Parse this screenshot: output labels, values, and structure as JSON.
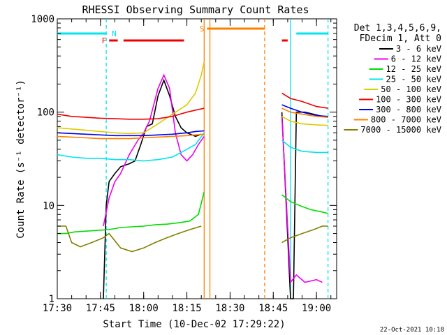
{
  "chart_data": {
    "type": "line",
    "title": "RHESSI Observing Summary Count Rates",
    "xlabel": "Start Time (10-Dec-02 17:29:22)",
    "ylabel": "Count Rate (s⁻¹ detector⁻¹)",
    "y_scale": "log",
    "ylim": [
      1,
      1000
    ],
    "y_ticks": [
      {
        "value": 1,
        "label": "1"
      },
      {
        "value": 10,
        "label": "10"
      },
      {
        "value": 100,
        "label": "100"
      },
      {
        "value": 1000,
        "label": "1000"
      }
    ],
    "xlim": [
      "17:30",
      "19:07"
    ],
    "x_ticks": [
      "17:30",
      "17:45",
      "18:00",
      "18:15",
      "18:30",
      "18:45",
      "19:00"
    ],
    "legend_header": [
      "Det 1,3,4,5,6,9,",
      "FDecim 1, Att 0"
    ],
    "legend_position": "top-right",
    "timestamp": "22-Oct-2021 10:18",
    "flags": [
      {
        "label": "N",
        "color": "#00e5ee",
        "segments": [
          [
            "17:30",
            "17:47"
          ],
          [
            "18:53",
            "19:04"
          ]
        ]
      },
      {
        "label": "F",
        "color": "#ee0000",
        "segments": [
          [
            "17:48",
            "17:51"
          ],
          [
            "17:53",
            "18:14"
          ],
          [
            "18:48",
            "18:50"
          ]
        ]
      },
      {
        "label": "S",
        "color": "#ff8000",
        "segments": [
          [
            "18:22",
            "18:42"
          ]
        ]
      }
    ],
    "time_markers": [
      {
        "time": "17:47",
        "color": "#00e5ee",
        "style": "dashed"
      },
      {
        "time": "18:21",
        "color": "#ff8000",
        "style": "solid"
      },
      {
        "time": "18:23",
        "color": "#ff8000",
        "style": "solid"
      },
      {
        "time": "18:42",
        "color": "#ff8000",
        "style": "dashed"
      },
      {
        "time": "18:51",
        "color": "#00e5ee",
        "style": "solid"
      },
      {
        "time": "19:04",
        "color": "#00e5ee",
        "style": "dashed"
      }
    ],
    "series": [
      {
        "name": "3 - 6 keV",
        "color": "#000000",
        "points": [
          [
            "17:46",
            1
          ],
          [
            "17:47",
            10
          ],
          [
            "17:48",
            18
          ],
          [
            "17:50",
            22
          ],
          [
            "17:52",
            26
          ],
          [
            "17:55",
            28
          ],
          [
            "17:57",
            30
          ],
          [
            "17:59",
            45
          ],
          [
            "18:01",
            70
          ],
          [
            "18:03",
            75
          ],
          [
            "18:05",
            150
          ],
          [
            "18:07",
            220
          ],
          [
            "18:09",
            150
          ],
          [
            "18:11",
            90
          ],
          [
            "18:13",
            68
          ],
          [
            "18:15",
            60
          ],
          [
            "18:18",
            55
          ],
          [
            "18:20",
            58
          ]
        ],
        "points2": [
          [
            "18:48",
            100
          ],
          [
            "18:51",
            1
          ],
          [
            "18:52",
            1
          ],
          [
            "18:53",
            100
          ],
          [
            "18:56",
            100
          ],
          [
            "18:59",
            95
          ],
          [
            "19:02",
            90
          ],
          [
            "19:04",
            88
          ]
        ]
      },
      {
        "name": "6 - 12 keV",
        "color": "#ee00ee",
        "points": [
          [
            "17:46",
            6
          ],
          [
            "17:48",
            12
          ],
          [
            "17:50",
            18
          ],
          [
            "17:52",
            22
          ],
          [
            "17:55",
            35
          ],
          [
            "17:58",
            50
          ],
          [
            "18:00",
            60
          ],
          [
            "18:02",
            80
          ],
          [
            "18:05",
            180
          ],
          [
            "18:07",
            250
          ],
          [
            "18:09",
            180
          ],
          [
            "18:11",
            60
          ],
          [
            "18:13",
            35
          ],
          [
            "18:15",
            30
          ],
          [
            "18:17",
            35
          ],
          [
            "18:19",
            45
          ],
          [
            "18:21",
            55
          ]
        ],
        "points2": [
          [
            "18:48",
            90
          ],
          [
            "18:51",
            1.5
          ],
          [
            "18:53",
            1.8
          ],
          [
            "18:56",
            1.5
          ],
          [
            "19:00",
            1.6
          ],
          [
            "19:02",
            1.5
          ]
        ]
      },
      {
        "name": "12 - 25 keV",
        "color": "#00dd00",
        "points": [
          [
            "17:30",
            5
          ],
          [
            "17:33",
            5
          ],
          [
            "17:36",
            5.2
          ],
          [
            "17:40",
            5.3
          ],
          [
            "17:44",
            5.4
          ],
          [
            "17:48",
            5.5
          ],
          [
            "17:52",
            5.8
          ],
          [
            "17:56",
            5.9
          ],
          [
            "18:00",
            6
          ],
          [
            "18:04",
            6.2
          ],
          [
            "18:08",
            6.3
          ],
          [
            "18:12",
            6.5
          ],
          [
            "18:16",
            6.8
          ],
          [
            "18:19",
            8
          ],
          [
            "18:21",
            14
          ]
        ],
        "points2": [
          [
            "18:48",
            13
          ],
          [
            "18:51",
            11
          ],
          [
            "18:54",
            10
          ],
          [
            "18:58",
            9
          ],
          [
            "19:02",
            8.5
          ],
          [
            "19:04",
            8.2
          ]
        ]
      },
      {
        "name": "25 - 50 keV",
        "color": "#00e5ee",
        "points": [
          [
            "17:30",
            35
          ],
          [
            "17:35",
            33
          ],
          [
            "17:40",
            32
          ],
          [
            "17:45",
            32
          ],
          [
            "17:50",
            31
          ],
          [
            "17:55",
            31
          ],
          [
            "18:00",
            30
          ],
          [
            "18:05",
            31
          ],
          [
            "18:10",
            33
          ],
          [
            "18:15",
            40
          ],
          [
            "18:18",
            45
          ],
          [
            "18:21",
            60
          ]
        ],
        "points2": [
          [
            "18:48",
            50
          ],
          [
            "18:51",
            42
          ],
          [
            "18:55",
            38
          ],
          [
            "19:00",
            37
          ],
          [
            "19:04",
            37
          ]
        ]
      },
      {
        "name": "50 - 100 keV",
        "color": "#ddcc00",
        "points": [
          [
            "17:30",
            68
          ],
          [
            "17:35",
            66
          ],
          [
            "17:40",
            64
          ],
          [
            "17:45",
            62
          ],
          [
            "17:50",
            60
          ],
          [
            "17:55",
            59
          ],
          [
            "18:00",
            60
          ],
          [
            "18:05",
            75
          ],
          [
            "18:10",
            95
          ],
          [
            "18:15",
            120
          ],
          [
            "18:18",
            160
          ],
          [
            "18:20",
            250
          ],
          [
            "18:21",
            350
          ]
        ],
        "points2": [
          [
            "18:48",
            90
          ],
          [
            "18:51",
            80
          ],
          [
            "18:55",
            75
          ],
          [
            "19:00",
            73
          ],
          [
            "19:04",
            72
          ]
        ]
      },
      {
        "name": "100 - 300 keV",
        "color": "#ee0000",
        "points": [
          [
            "17:30",
            95
          ],
          [
            "17:35",
            90
          ],
          [
            "17:40",
            88
          ],
          [
            "17:45",
            86
          ],
          [
            "17:50",
            85
          ],
          [
            "17:55",
            84
          ],
          [
            "18:00",
            84
          ],
          [
            "18:05",
            85
          ],
          [
            "18:10",
            90
          ],
          [
            "18:15",
            100
          ],
          [
            "18:18",
            105
          ],
          [
            "18:21",
            110
          ]
        ],
        "points2": [
          [
            "18:48",
            160
          ],
          [
            "18:51",
            140
          ],
          [
            "18:55",
            130
          ],
          [
            "19:00",
            115
          ],
          [
            "19:04",
            110
          ]
        ]
      },
      {
        "name": "300 - 800 keV",
        "color": "#0000ee",
        "points": [
          [
            "17:30",
            60
          ],
          [
            "17:35",
            59
          ],
          [
            "17:40",
            58
          ],
          [
            "17:45",
            57
          ],
          [
            "17:50",
            56
          ],
          [
            "17:55",
            56
          ],
          [
            "18:00",
            56
          ],
          [
            "18:05",
            57
          ],
          [
            "18:10",
            58
          ],
          [
            "18:15",
            60
          ],
          [
            "18:18",
            62
          ],
          [
            "18:21",
            63
          ]
        ],
        "points2": [
          [
            "18:48",
            120
          ],
          [
            "18:51",
            110
          ],
          [
            "18:55",
            100
          ],
          [
            "19:00",
            92
          ],
          [
            "19:04",
            90
          ]
        ]
      },
      {
        "name": "800 - 7000 keV",
        "color": "#ff8000",
        "points": [
          [
            "17:30",
            55
          ],
          [
            "17:35",
            54
          ],
          [
            "17:40",
            53
          ],
          [
            "17:45",
            52
          ],
          [
            "17:50",
            52
          ],
          [
            "17:55",
            52
          ],
          [
            "18:00",
            53
          ],
          [
            "18:05",
            54
          ],
          [
            "18:10",
            55
          ],
          [
            "18:15",
            56
          ],
          [
            "18:18",
            57
          ],
          [
            "18:21",
            58
          ]
        ],
        "points2": [
          [
            "18:48",
            110
          ],
          [
            "18:51",
            100
          ],
          [
            "18:55",
            95
          ],
          [
            "19:00",
            90
          ],
          [
            "19:04",
            88
          ]
        ]
      },
      {
        "name": "7000 - 15000 keV",
        "color": "#808000",
        "points": [
          [
            "17:30",
            6
          ],
          [
            "17:33",
            6
          ],
          [
            "17:35",
            4
          ],
          [
            "17:38",
            3.6
          ],
          [
            "17:42",
            4
          ],
          [
            "17:46",
            4.5
          ],
          [
            "17:48",
            5
          ],
          [
            "17:52",
            3.5
          ],
          [
            "17:56",
            3.2
          ],
          [
            "18:00",
            3.5
          ],
          [
            "18:04",
            4
          ],
          [
            "18:08",
            4.5
          ],
          [
            "18:12",
            5
          ],
          [
            "18:16",
            5.5
          ],
          [
            "18:20",
            6
          ]
        ],
        "points2": [
          [
            "18:48",
            4
          ],
          [
            "18:51",
            4.5
          ],
          [
            "18:55",
            5
          ],
          [
            "18:59",
            5.5
          ],
          [
            "19:02",
            6
          ],
          [
            "19:04",
            6
          ]
        ]
      }
    ]
  }
}
